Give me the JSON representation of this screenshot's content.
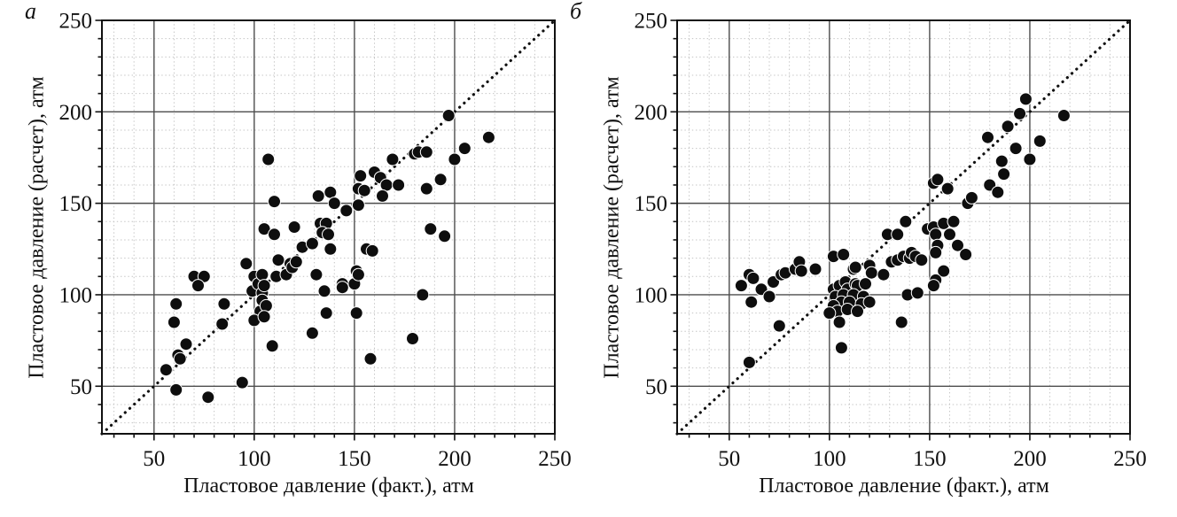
{
  "figure": {
    "panels": [
      {
        "label": "а",
        "x_title": "Пластовое давление (факт.), атм",
        "y_title": "Пластовое давление (расчет), атм"
      },
      {
        "label": "б",
        "x_title": "Пластовое давление (факт.), атм",
        "y_title": "Пластовое давление (расчет), атм"
      }
    ]
  },
  "colors": {
    "point": "#0e0e0e",
    "point_rim": "#ffffff",
    "grid_major": "#4d4d4d",
    "grid_minor": "#c4c4c4",
    "frame": "#111111",
    "identity_line": "#111111",
    "text": "#111111"
  },
  "chart_data": [
    {
      "type": "scatter",
      "title": "а",
      "xlabel": "Пластовое давление (факт.), атм",
      "ylabel": "Пластовое давление (расчет), атм",
      "xlim": [
        24,
        250
      ],
      "ylim": [
        24,
        250
      ],
      "major_ticks": [
        50,
        100,
        150,
        200,
        250
      ],
      "minor_tick_step": 10,
      "grid": true,
      "legend": "none",
      "reference_line": "y=x dotted",
      "points": [
        [
          56,
          59
        ],
        [
          61,
          48
        ],
        [
          60,
          85
        ],
        [
          61,
          95
        ],
        [
          62,
          67
        ],
        [
          63,
          65
        ],
        [
          66,
          73
        ],
        [
          70,
          110
        ],
        [
          75,
          110
        ],
        [
          72,
          105
        ],
        [
          77,
          44
        ],
        [
          84,
          84
        ],
        [
          85,
          95
        ],
        [
          94,
          52
        ],
        [
          96,
          117
        ],
        [
          99,
          102
        ],
        [
          100,
          110
        ],
        [
          102,
          106
        ],
        [
          104,
          111
        ],
        [
          104,
          101
        ],
        [
          105,
          105
        ],
        [
          103,
          91
        ],
        [
          104,
          97
        ],
        [
          106,
          94
        ],
        [
          100,
          86
        ],
        [
          105,
          88
        ],
        [
          109,
          72
        ],
        [
          111,
          110
        ],
        [
          112,
          119
        ],
        [
          116,
          111
        ],
        [
          118,
          117
        ],
        [
          119,
          115
        ],
        [
          121,
          118
        ],
        [
          124,
          126
        ],
        [
          129,
          128
        ],
        [
          105,
          136
        ],
        [
          110,
          133
        ],
        [
          110,
          151
        ],
        [
          107,
          174
        ],
        [
          120,
          137
        ],
        [
          129,
          79
        ],
        [
          131,
          111
        ],
        [
          135,
          102
        ],
        [
          136,
          90
        ],
        [
          133,
          139
        ],
        [
          136,
          139
        ],
        [
          134,
          134
        ],
        [
          137,
          133
        ],
        [
          138,
          125
        ],
        [
          132,
          154
        ],
        [
          138,
          156
        ],
        [
          140,
          150
        ],
        [
          144,
          106
        ],
        [
          144,
          104
        ],
        [
          150,
          106
        ],
        [
          151,
          113
        ],
        [
          152,
          111
        ],
        [
          151,
          90
        ],
        [
          146,
          146
        ],
        [
          152,
          149
        ],
        [
          152,
          158
        ],
        [
          155,
          157
        ],
        [
          153,
          165
        ],
        [
          160,
          167
        ],
        [
          163,
          164
        ],
        [
          166,
          160
        ],
        [
          172,
          160
        ],
        [
          164,
          154
        ],
        [
          156,
          125
        ],
        [
          159,
          124
        ],
        [
          158,
          65
        ],
        [
          169,
          174
        ],
        [
          180,
          177
        ],
        [
          182,
          178
        ],
        [
          186,
          178
        ],
        [
          186,
          158
        ],
        [
          188,
          136
        ],
        [
          193,
          163
        ],
        [
          195,
          132
        ],
        [
          197,
          198
        ],
        [
          200,
          174
        ],
        [
          205,
          180
        ],
        [
          217,
          186
        ],
        [
          179,
          76
        ],
        [
          184,
          100
        ]
      ]
    },
    {
      "type": "scatter",
      "title": "б",
      "xlabel": "Пластовое давление (факт.), атм",
      "ylabel": "Пластовое давление (расчет), атм",
      "xlim": [
        24,
        250
      ],
      "ylim": [
        24,
        250
      ],
      "major_ticks": [
        50,
        100,
        150,
        200,
        250
      ],
      "minor_tick_step": 10,
      "grid": true,
      "legend": "none",
      "reference_line": "y=x dotted",
      "points": [
        [
          56,
          105
        ],
        [
          60,
          111
        ],
        [
          62,
          109
        ],
        [
          61,
          96
        ],
        [
          66,
          103
        ],
        [
          70,
          99
        ],
        [
          72,
          107
        ],
        [
          75,
          83
        ],
        [
          76,
          111
        ],
        [
          78,
          112
        ],
        [
          83,
          114
        ],
        [
          85,
          118
        ],
        [
          86,
          113
        ],
        [
          93,
          114
        ],
        [
          60,
          63
        ],
        [
          102,
          121
        ],
        [
          107,
          122
        ],
        [
          112,
          114
        ],
        [
          113,
          115
        ],
        [
          120,
          116
        ],
        [
          121,
          112
        ],
        [
          127,
          111
        ],
        [
          102,
          103
        ],
        [
          105,
          105
        ],
        [
          108,
          107
        ],
        [
          109,
          103
        ],
        [
          113,
          106
        ],
        [
          114,
          105
        ],
        [
          118,
          106
        ],
        [
          103,
          99
        ],
        [
          107,
          100
        ],
        [
          112,
          100
        ],
        [
          117,
          99
        ],
        [
          106,
          96
        ],
        [
          110,
          96
        ],
        [
          116,
          95
        ],
        [
          120,
          96
        ],
        [
          102,
          94
        ],
        [
          104,
          91
        ],
        [
          109,
          92
        ],
        [
          114,
          91
        ],
        [
          100,
          90
        ],
        [
          105,
          85
        ],
        [
          106,
          71
        ],
        [
          131,
          118
        ],
        [
          134,
          119
        ],
        [
          137,
          121
        ],
        [
          140,
          120
        ],
        [
          141,
          123
        ],
        [
          143,
          121
        ],
        [
          146,
          119
        ],
        [
          139,
          100
        ],
        [
          144,
          101
        ],
        [
          136,
          85
        ],
        [
          129,
          133
        ],
        [
          134,
          133
        ],
        [
          138,
          140
        ],
        [
          149,
          136
        ],
        [
          152,
          137
        ],
        [
          157,
          139
        ],
        [
          160,
          133
        ],
        [
          162,
          140
        ],
        [
          153,
          133
        ],
        [
          154,
          127
        ],
        [
          153,
          123
        ],
        [
          164,
          127
        ],
        [
          168,
          122
        ],
        [
          157,
          113
        ],
        [
          153,
          108
        ],
        [
          152,
          105
        ],
        [
          152,
          161
        ],
        [
          154,
          163
        ],
        [
          159,
          158
        ],
        [
          169,
          150
        ],
        [
          171,
          153
        ],
        [
          180,
          160
        ],
        [
          184,
          156
        ],
        [
          186,
          173
        ],
        [
          187,
          166
        ],
        [
          193,
          180
        ],
        [
          189,
          192
        ],
        [
          195,
          199
        ],
        [
          198,
          207
        ],
        [
          200,
          174
        ],
        [
          205,
          184
        ],
        [
          217,
          198
        ],
        [
          179,
          186
        ]
      ]
    }
  ]
}
